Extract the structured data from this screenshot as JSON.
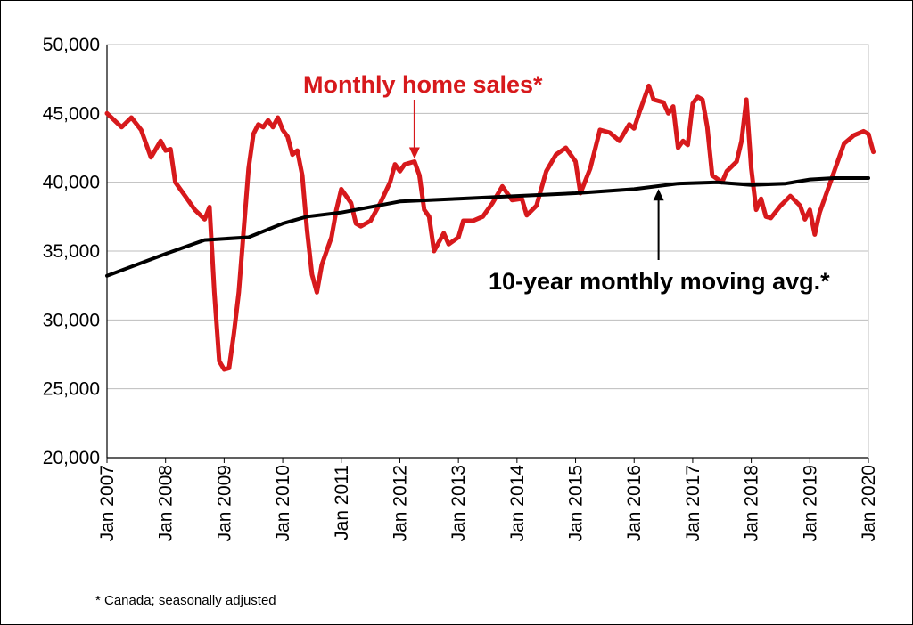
{
  "chart_data": {
    "type": "line",
    "title": "",
    "xlabel": "",
    "ylabel": "",
    "ylim": [
      20000,
      50000
    ],
    "y_ticks": [
      "20,000",
      "25,000",
      "30,000",
      "35,000",
      "40,000",
      "45,000",
      "50,000"
    ],
    "y_tick_values": [
      20000,
      25000,
      30000,
      35000,
      40000,
      45000,
      50000
    ],
    "x_range": [
      "2007-01",
      "2020-01"
    ],
    "x_tick_labels": [
      "Jan 2007",
      "Jan 2008",
      "Jan 2009",
      "Jan 2010",
      "Jan 2011",
      "Jan 2012",
      "Jan 2013",
      "Jan 2014",
      "Jan 2015",
      "Jan 2016",
      "Jan 2017",
      "Jan 2018",
      "Jan 2019",
      "Jan 2020"
    ],
    "grid": "horizontal",
    "series": [
      {
        "name": "Monthly home sales*",
        "color": "#d7191c",
        "points": [
          [
            "2007-01",
            45000
          ],
          [
            "2007-04",
            44000
          ],
          [
            "2007-06",
            44700
          ],
          [
            "2007-08",
            43800
          ],
          [
            "2007-10",
            41800
          ],
          [
            "2007-12",
            43000
          ],
          [
            "2008-01",
            42300
          ],
          [
            "2008-02",
            42400
          ],
          [
            "2008-03",
            40000
          ],
          [
            "2008-05",
            39000
          ],
          [
            "2008-07",
            38000
          ],
          [
            "2008-09",
            37300
          ],
          [
            "2008-10",
            38200
          ],
          [
            "2008-11",
            32000
          ],
          [
            "2008-12",
            27000
          ],
          [
            "2009-01",
            26400
          ],
          [
            "2009-02",
            26500
          ],
          [
            "2009-03",
            29000
          ],
          [
            "2009-04",
            32000
          ],
          [
            "2009-05",
            36500
          ],
          [
            "2009-06",
            41000
          ],
          [
            "2009-07",
            43500
          ],
          [
            "2009-08",
            44200
          ],
          [
            "2009-09",
            44000
          ],
          [
            "2009-10",
            44500
          ],
          [
            "2009-11",
            44000
          ],
          [
            "2009-12",
            44700
          ],
          [
            "2010-01",
            43800
          ],
          [
            "2010-02",
            43300
          ],
          [
            "2010-03",
            42000
          ],
          [
            "2010-04",
            42300
          ],
          [
            "2010-05",
            40500
          ],
          [
            "2010-06",
            36500
          ],
          [
            "2010-07",
            33300
          ],
          [
            "2010-08",
            32000
          ],
          [
            "2010-09",
            34000
          ],
          [
            "2010-10",
            35000
          ],
          [
            "2010-11",
            36000
          ],
          [
            "2010-12",
            38000
          ],
          [
            "2011-01",
            39500
          ],
          [
            "2011-02",
            39000
          ],
          [
            "2011-03",
            38500
          ],
          [
            "2011-04",
            37000
          ],
          [
            "2011-05",
            36800
          ],
          [
            "2011-07",
            37200
          ],
          [
            "2011-09",
            38500
          ],
          [
            "2011-11",
            40000
          ],
          [
            "2011-12",
            41300
          ],
          [
            "2012-01",
            40800
          ],
          [
            "2012-02",
            41300
          ],
          [
            "2012-04",
            41500
          ],
          [
            "2012-05",
            40500
          ],
          [
            "2012-06",
            38000
          ],
          [
            "2012-07",
            37500
          ],
          [
            "2012-08",
            35000
          ],
          [
            "2012-10",
            36300
          ],
          [
            "2012-11",
            35500
          ],
          [
            "2013-01",
            36000
          ],
          [
            "2013-02",
            37200
          ],
          [
            "2013-04",
            37200
          ],
          [
            "2013-06",
            37500
          ],
          [
            "2013-08",
            38500
          ],
          [
            "2013-10",
            39700
          ],
          [
            "2013-12",
            38700
          ],
          [
            "2014-02",
            38800
          ],
          [
            "2014-03",
            37600
          ],
          [
            "2014-05",
            38300
          ],
          [
            "2014-07",
            40800
          ],
          [
            "2014-09",
            42000
          ],
          [
            "2014-11",
            42500
          ],
          [
            "2015-01",
            41500
          ],
          [
            "2015-02",
            39200
          ],
          [
            "2015-04",
            41000
          ],
          [
            "2015-06",
            43800
          ],
          [
            "2015-08",
            43600
          ],
          [
            "2015-10",
            43000
          ],
          [
            "2015-12",
            44200
          ],
          [
            "2016-01",
            43900
          ],
          [
            "2016-02",
            45000
          ],
          [
            "2016-04",
            47000
          ],
          [
            "2016-05",
            46000
          ],
          [
            "2016-07",
            45800
          ],
          [
            "2016-08",
            45000
          ],
          [
            "2016-09",
            45500
          ],
          [
            "2016-10",
            42500
          ],
          [
            "2016-11",
            43000
          ],
          [
            "2016-12",
            42700
          ],
          [
            "2017-01",
            45700
          ],
          [
            "2017-02",
            46200
          ],
          [
            "2017-03",
            46000
          ],
          [
            "2017-04",
            44000
          ],
          [
            "2017-05",
            40500
          ],
          [
            "2017-07",
            40000
          ],
          [
            "2017-08",
            40800
          ],
          [
            "2017-10",
            41500
          ],
          [
            "2017-11",
            43000
          ],
          [
            "2017-12",
            46000
          ],
          [
            "2018-01",
            41000
          ],
          [
            "2018-02",
            38000
          ],
          [
            "2018-03",
            38800
          ],
          [
            "2018-04",
            37500
          ],
          [
            "2018-05",
            37400
          ],
          [
            "2018-07",
            38300
          ],
          [
            "2018-09",
            39000
          ],
          [
            "2018-11",
            38300
          ],
          [
            "2018-12",
            37300
          ],
          [
            "2019-01",
            38000
          ],
          [
            "2019-02",
            36200
          ],
          [
            "2019-03",
            37800
          ],
          [
            "2019-05",
            39800
          ],
          [
            "2019-07",
            41800
          ],
          [
            "2019-08",
            42800
          ],
          [
            "2019-10",
            43400
          ],
          [
            "2019-12",
            43700
          ],
          [
            "2020-01",
            43500
          ],
          [
            "2020-02",
            42200
          ]
        ]
      },
      {
        "name": "10-year monthly moving avg.*",
        "color": "#000000",
        "points": [
          [
            "2007-01",
            33200
          ],
          [
            "2008-01",
            34800
          ],
          [
            "2008-09",
            35800
          ],
          [
            "2009-06",
            36000
          ],
          [
            "2010-01",
            37000
          ],
          [
            "2010-06",
            37500
          ],
          [
            "2011-01",
            37800
          ],
          [
            "2012-01",
            38600
          ],
          [
            "2013-01",
            38800
          ],
          [
            "2014-01",
            39000
          ],
          [
            "2015-01",
            39200
          ],
          [
            "2016-01",
            39500
          ],
          [
            "2016-10",
            39900
          ],
          [
            "2017-06",
            40000
          ],
          [
            "2018-01",
            39800
          ],
          [
            "2018-08",
            39900
          ],
          [
            "2019-01",
            40200
          ],
          [
            "2019-06",
            40300
          ],
          [
            "2020-01",
            40300
          ]
        ]
      }
    ],
    "annotations": [
      {
        "text": "Monthly home sales*",
        "color": "#d7191c",
        "arrow_to": [
          "2012-04",
          41500
        ]
      },
      {
        "text": "10-year monthly moving avg.*",
        "color": "#000000",
        "arrow_to": [
          "2016-06",
          39700
        ]
      }
    ]
  },
  "footnote": "* Canada; seasonally adjusted"
}
